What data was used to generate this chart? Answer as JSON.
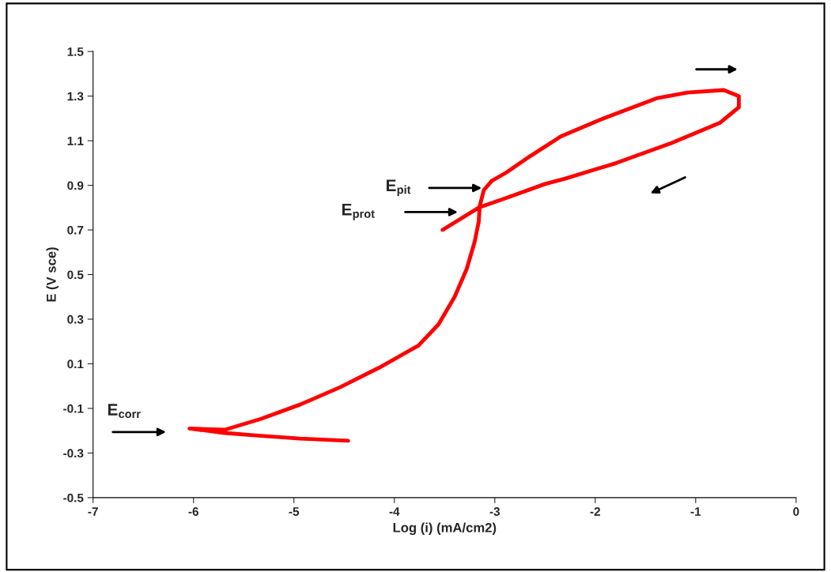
{
  "chart_data": {
    "type": "line",
    "xlabel": "Log (i) (mA/cm2)",
    "ylabel": "E (V sce)",
    "xlim": [
      -7,
      0
    ],
    "xticks": [
      -7,
      -6,
      -5,
      -4,
      -3,
      -2,
      -1,
      0
    ],
    "ylim": [
      -0.5,
      1.5
    ],
    "yticks": [
      -0.5,
      -0.3,
      -0.1,
      0.1,
      0.3,
      0.5,
      0.7,
      0.9,
      1.1,
      1.3,
      1.5
    ],
    "grid": false,
    "legend": false,
    "marker": "none",
    "line_style": "solid",
    "series": [
      {
        "color": "#ff0000",
        "x": [
          -4.46,
          -4.94,
          -5.41,
          -5.69,
          -6.04,
          -5.69,
          -5.33,
          -4.94,
          -4.54,
          -4.15,
          -3.76,
          -3.56,
          -3.4,
          -3.28,
          -3.2,
          -3.16,
          -3.15,
          -3.11,
          -3.03,
          -2.89,
          -2.65,
          -2.34,
          -1.94,
          -1.39,
          -1.08,
          -0.72,
          -0.57,
          -0.57,
          -0.76,
          -1.24,
          -1.79,
          -2.3,
          -2.5,
          -2.89,
          -3.16,
          -3.52
        ],
        "values": [
          -0.245,
          -0.235,
          -0.22,
          -0.21,
          -0.19,
          -0.196,
          -0.147,
          -0.083,
          -0.005,
          0.083,
          0.182,
          0.277,
          0.4,
          0.525,
          0.648,
          0.737,
          0.807,
          0.878,
          0.92,
          0.956,
          1.03,
          1.12,
          1.196,
          1.29,
          1.316,
          1.327,
          1.3,
          1.25,
          1.18,
          1.09,
          1.0,
          0.93,
          0.906,
          0.843,
          0.8,
          0.7
        ]
      }
    ],
    "annotations": [
      "E$_{corr}$",
      "E$_{pit}$",
      "E$_{prot}$"
    ]
  }
}
